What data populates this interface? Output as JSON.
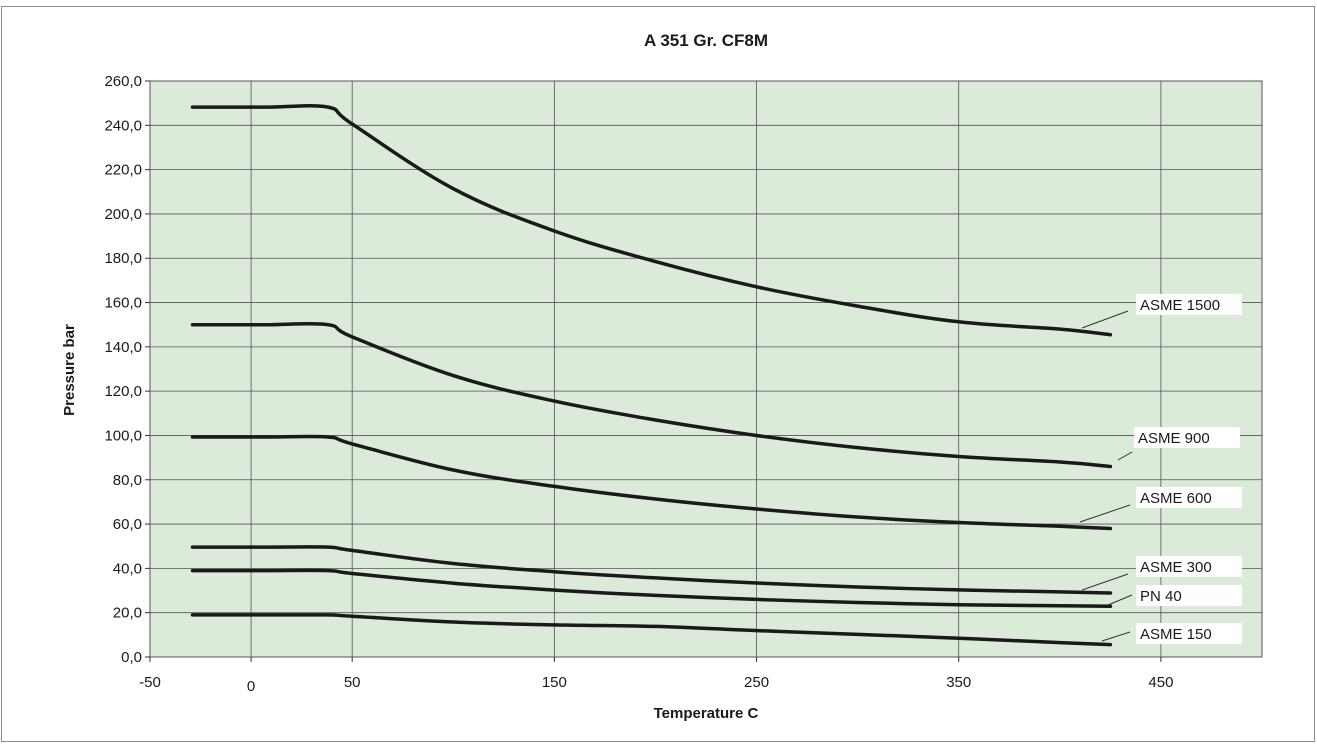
{
  "chart_data": {
    "type": "line",
    "title": "A 351 Gr. CF8M",
    "xlabel": "Temperature C",
    "ylabel": "Pressure bar",
    "xlim": [
      -50,
      500
    ],
    "ylim": [
      0,
      260
    ],
    "x_ticks": [
      {
        "value": -50,
        "label": "-50"
      },
      {
        "value": 0,
        "label": "0"
      },
      {
        "value": 50,
        "label": "50"
      },
      {
        "value": 150,
        "label": "150"
      },
      {
        "value": 250,
        "label": "250"
      },
      {
        "value": 350,
        "label": "350"
      },
      {
        "value": 450,
        "label": "450"
      }
    ],
    "y_ticks": [
      {
        "value": 0,
        "label": "0,0"
      },
      {
        "value": 20,
        "label": "20,0"
      },
      {
        "value": 40,
        "label": "40,0"
      },
      {
        "value": 60,
        "label": "60,0"
      },
      {
        "value": 80,
        "label": "80,0"
      },
      {
        "value": 100,
        "label": "100,0"
      },
      {
        "value": 120,
        "label": "120,0"
      },
      {
        "value": 140,
        "label": "140,0"
      },
      {
        "value": 160,
        "label": "160,0"
      },
      {
        "value": 180,
        "label": "180,0"
      },
      {
        "value": 200,
        "label": "200,0"
      },
      {
        "value": 220,
        "label": "220,0"
      },
      {
        "value": 240,
        "label": "240,0"
      },
      {
        "value": 260,
        "label": "260,0"
      }
    ],
    "grid": true,
    "background_color": "#dbead9",
    "line_color": "#1a1a1a",
    "series": [
      {
        "name": "ASME 1500",
        "x": [
          -29,
          0,
          10,
          38,
          50,
          100,
          150,
          200,
          250,
          300,
          350,
          400,
          425
        ],
        "y": [
          248.2,
          248.2,
          248.2,
          248.2,
          240.6,
          211.4,
          192.3,
          178.5,
          167.1,
          158.4,
          151.3,
          148.0,
          145.5
        ]
      },
      {
        "name": "ASME 900",
        "x": [
          -29,
          0,
          10,
          38,
          50,
          100,
          150,
          200,
          250,
          300,
          350,
          400,
          425
        ],
        "y": [
          150.0,
          150.0,
          150.0,
          150.0,
          144.5,
          127.0,
          115.5,
          107.0,
          100.0,
          94.5,
          90.5,
          88.0,
          86.0
        ]
      },
      {
        "name": "ASME 600",
        "x": [
          -29,
          0,
          10,
          38,
          50,
          100,
          150,
          200,
          250,
          300,
          350,
          400,
          425
        ],
        "y": [
          99.3,
          99.3,
          99.3,
          99.3,
          96.2,
          84.4,
          77.0,
          71.3,
          66.8,
          63.2,
          60.7,
          59.0,
          58.0
        ]
      },
      {
        "name": "ASME 300",
        "x": [
          -29,
          0,
          10,
          38,
          50,
          100,
          150,
          200,
          250,
          300,
          350,
          400,
          425
        ],
        "y": [
          49.6,
          49.6,
          49.6,
          49.6,
          48.1,
          42.2,
          38.5,
          35.7,
          33.4,
          31.6,
          30.3,
          29.4,
          28.9
        ]
      },
      {
        "name": "PN 40",
        "x": [
          -29,
          0,
          10,
          38,
          50,
          100,
          150,
          200,
          250,
          300,
          350,
          400,
          425
        ],
        "y": [
          39.0,
          39.0,
          39.0,
          39.0,
          37.7,
          33.3,
          30.2,
          27.8,
          26.0,
          24.6,
          23.6,
          23.1,
          22.9
        ]
      },
      {
        "name": "ASME 150",
        "x": [
          -29,
          0,
          10,
          38,
          50,
          100,
          150,
          200,
          250,
          300,
          350,
          400,
          425
        ],
        "y": [
          19.0,
          19.0,
          19.0,
          19.0,
          18.4,
          15.8,
          14.5,
          13.8,
          11.9,
          10.2,
          8.5,
          6.5,
          5.6
        ]
      }
    ]
  }
}
